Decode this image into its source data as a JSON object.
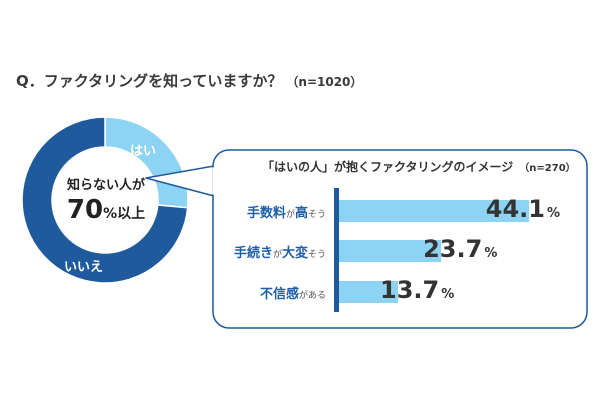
{
  "question": {
    "text": "Q．ファクタリングを知っていますか？",
    "n": "（n=1020）"
  },
  "donut": {
    "yes_label": "はい",
    "no_label": "いいえ",
    "center_line1": "知らない人が",
    "center_big": "70",
    "center_unit": "%以上"
  },
  "panel": {
    "title": "「はいの人」が抱くファクタリングのイメージ",
    "n": "（n=270）"
  },
  "colors": {
    "no": "#1f5a9d",
    "yes": "#8dd3f3",
    "bar": "#8dd3f3",
    "axis": "#1f5a9d",
    "callout_border": "#1f5a9d",
    "category_text": "#1e5fa8"
  },
  "chart_data": [
    {
      "type": "pie",
      "title": "",
      "categories": [
        "はい",
        "いいえ"
      ],
      "values": [
        26.5,
        73.5
      ],
      "units": "%"
    },
    {
      "type": "bar",
      "orientation": "horizontal",
      "categories": [
        "手数料が高そう",
        "手続きが大変そう",
        "不信感がある"
      ],
      "category_parts": [
        {
          "big1": "手数料",
          "small1": "が",
          "big2": "高",
          "small2": "そう"
        },
        {
          "big1": "手続き",
          "small1": "が",
          "big2": "大変",
          "small2": "そう"
        },
        {
          "big1": "不信感",
          "small1": "がある",
          "big2": "",
          "small2": ""
        }
      ],
      "values": [
        44.1,
        23.7,
        13.7
      ],
      "value_labels": [
        "44.1",
        "23.7",
        "13.7"
      ],
      "unit": "%",
      "xlim": [
        0,
        50
      ],
      "grid": false,
      "legend": "none"
    }
  ]
}
